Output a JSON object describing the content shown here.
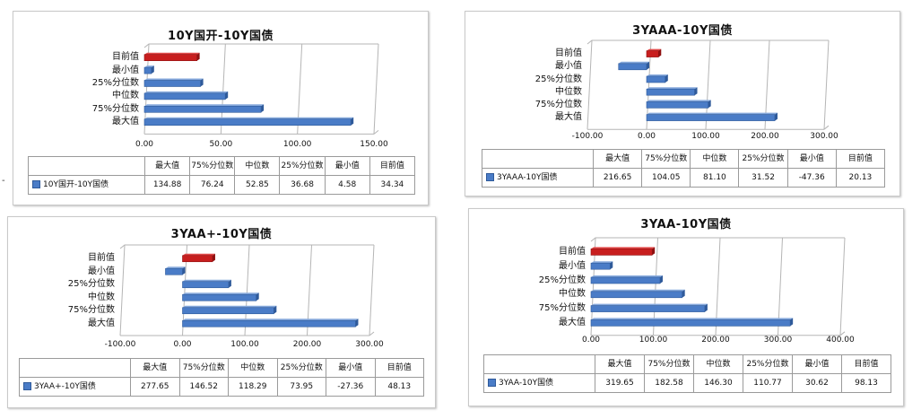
{
  "colors": {
    "bar": "#4a7cc7",
    "bar_edge": "#2f5a9a",
    "highlight": "#c81e1e",
    "grid": "#b5b5b5"
  },
  "icons": {
    "legend_key": "blue-square-icon"
  },
  "stray_mark": "-",
  "chart_data": [
    {
      "type": "bar",
      "title": "10Y国开-10Y国债",
      "series_name": "10Y国开-10Y国债",
      "categories": [
        "目前值",
        "最小值",
        "25%分位数",
        "中位数",
        "75%分位数",
        "最大值"
      ],
      "values": [
        34.34,
        4.58,
        36.68,
        52.85,
        76.24,
        134.88
      ],
      "highlight": "目前值",
      "xlim": [
        0,
        150
      ],
      "ticks": [
        "0.00",
        "50.00",
        "100.00",
        "150.00"
      ],
      "tick_values": [
        0,
        50,
        100,
        150
      ],
      "grid": true,
      "table_headers": [
        "最大值",
        "75%分位数",
        "中位数",
        "25%分位数",
        "最小值",
        "目前值"
      ],
      "table_values": [
        "134.88",
        "76.24",
        "52.85",
        "36.68",
        "4.58",
        "34.34"
      ]
    },
    {
      "type": "bar",
      "title": "3YAAA-10Y国债",
      "series_name": "3YAAA-10Y国债",
      "categories": [
        "目前值",
        "最小值",
        "25%分位数",
        "中位数",
        "75%分位数",
        "最大值"
      ],
      "values": [
        20.13,
        -47.36,
        31.52,
        81.1,
        104.05,
        216.65
      ],
      "highlight": "目前值",
      "xlim": [
        -100,
        300
      ],
      "ticks": [
        "-100.00",
        "0.00",
        "100.00",
        "200.00",
        "300.00"
      ],
      "tick_values": [
        -100,
        0,
        100,
        200,
        300
      ],
      "grid": true,
      "table_headers": [
        "最大值",
        "75%分位数",
        "中位数",
        "25%分位数",
        "最小值",
        "目前值"
      ],
      "table_values": [
        "216.65",
        "104.05",
        "81.10",
        "31.52",
        "-47.36",
        "20.13"
      ]
    },
    {
      "type": "bar",
      "title": "3YAA+-10Y国债",
      "series_name": "3YAA+-10Y国债",
      "categories": [
        "目前值",
        "最小值",
        "25%分位数",
        "中位数",
        "75%分位数",
        "最大值"
      ],
      "values": [
        48.13,
        -27.36,
        73.95,
        118.29,
        146.52,
        277.65
      ],
      "highlight": "目前值",
      "xlim": [
        -100,
        300
      ],
      "ticks": [
        "-100.00",
        "0.00",
        "100.00",
        "200.00",
        "300.00"
      ],
      "tick_values": [
        -100,
        0,
        100,
        200,
        300
      ],
      "grid": true,
      "table_headers": [
        "最大值",
        "75%分位数",
        "中位数",
        "25%分位数",
        "最小值",
        "目前值"
      ],
      "table_values": [
        "277.65",
        "146.52",
        "118.29",
        "73.95",
        "-27.36",
        "48.13"
      ]
    },
    {
      "type": "bar",
      "title": "3YAA-10Y国债",
      "series_name": "3YAA-10Y国债",
      "categories": [
        "目前值",
        "最小值",
        "25%分位数",
        "中位数",
        "75%分位数",
        "最大值"
      ],
      "values": [
        98.13,
        30.62,
        110.77,
        146.3,
        182.58,
        319.65
      ],
      "highlight": "目前值",
      "xlim": [
        0,
        400
      ],
      "ticks": [
        "0.00",
        "100.00",
        "200.00",
        "300.00",
        "400.00"
      ],
      "tick_values": [
        0,
        100,
        200,
        300,
        400
      ],
      "grid": true,
      "table_headers": [
        "最大值",
        "75%分位数",
        "中位数",
        "25%分位数",
        "最小值",
        "目前值"
      ],
      "table_values": [
        "319.65",
        "182.58",
        "146.30",
        "110.77",
        "30.62",
        "98.13"
      ]
    }
  ]
}
